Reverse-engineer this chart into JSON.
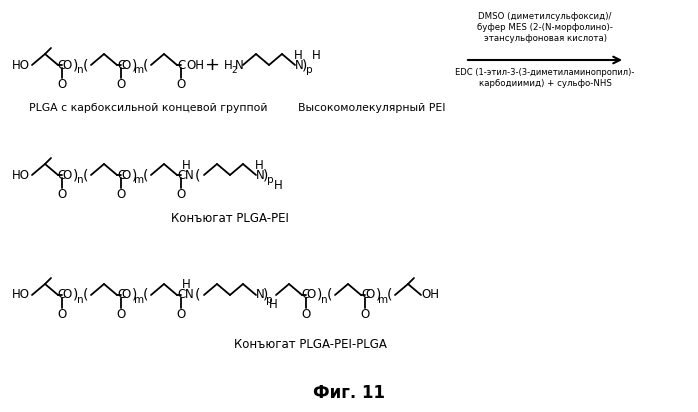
{
  "title": "Фиг. 11",
  "bg_color": "#ffffff",
  "text_color": "#000000",
  "label1": "PLGA с карбоксильной концевой группой",
  "label2": "Высокомолекулярный PEI",
  "label3": "Конъюгат PLGA-PEI",
  "label4": "Конъюгат PLGA-PEI-PLGA",
  "reaction_line1": "DMSO (диметилсульфоксид)/",
  "reaction_line2": "буфер MES (2-(N-морфолино)-",
  "reaction_line3": "этансульфоновая кислота)",
  "reaction_line4": "EDC (1-этил-3-(3-диметиламинопропил)-",
  "reaction_line5": "карбодиимид) + сульфо-NHS"
}
